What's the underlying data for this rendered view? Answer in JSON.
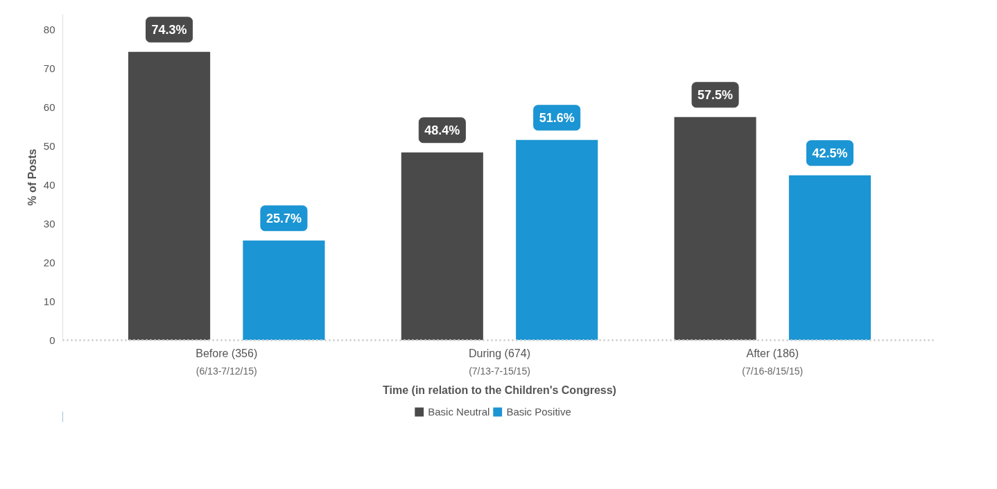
{
  "chart_data": {
    "type": "bar",
    "xlabel": "Time (in relation to the Children's Congress)",
    "ylabel": "% of Posts",
    "categories": [
      "Before (356)\n(6/13-7/12/15)",
      "During (674)\n(7/13-7-15/15)",
      "After (186)\n(7/16-8/15/15)"
    ],
    "series": [
      {
        "name": "Basic Neutral",
        "color": "#4a4a4a",
        "values": [
          74.3,
          48.4,
          57.5
        ],
        "value_labels": [
          "74.3%",
          "48.4%",
          "57.5%"
        ]
      },
      {
        "name": "Basic Positive",
        "color": "#1b95d3",
        "values": [
          25.7,
          51.6,
          42.5
        ],
        "value_labels": [
          "25.7%",
          "51.6%",
          "42.5%"
        ]
      }
    ],
    "ylim": [
      0,
      84
    ],
    "yticks": [
      0,
      10,
      20,
      30,
      40,
      50,
      60,
      70,
      80
    ],
    "grid": false,
    "legend": "bottom"
  }
}
